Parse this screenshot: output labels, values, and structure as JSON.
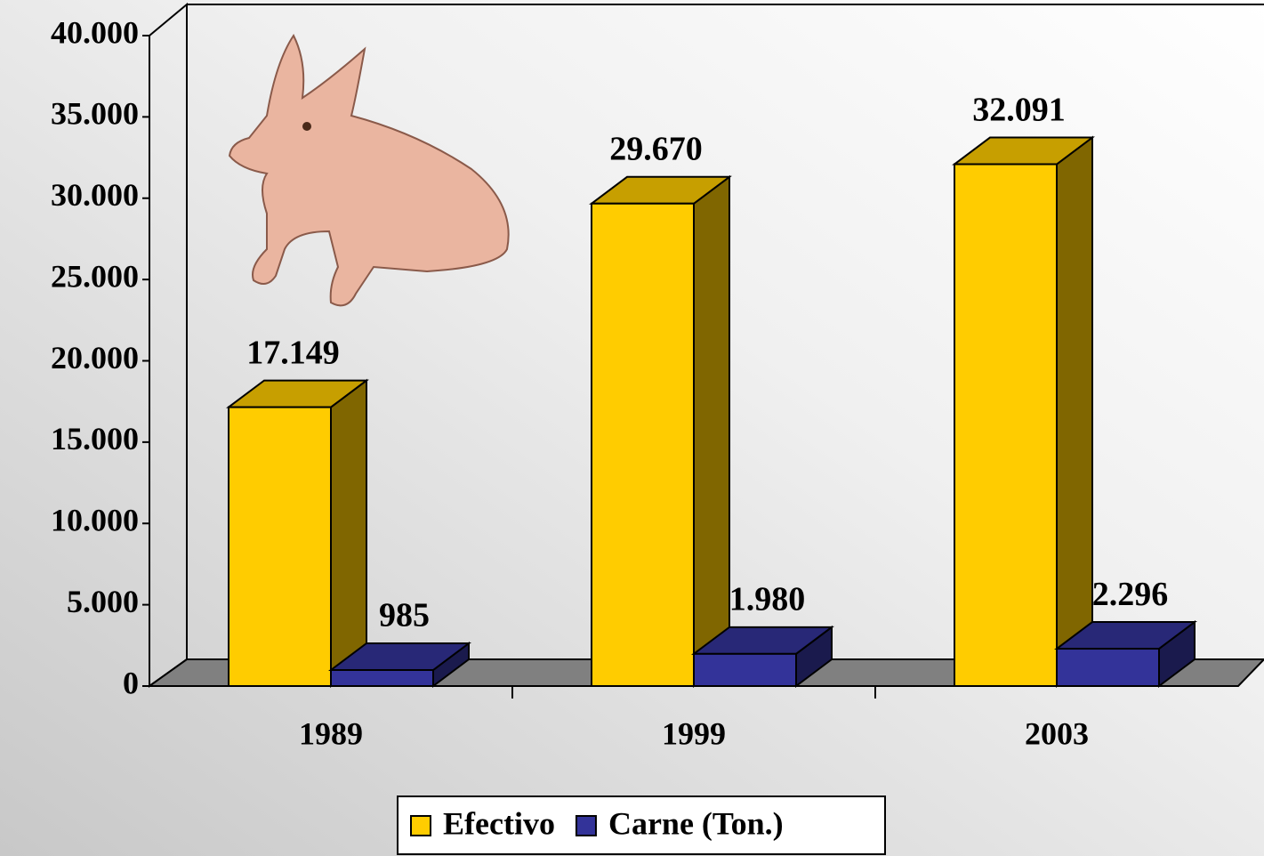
{
  "chart_data": {
    "type": "bar3d",
    "categories": [
      "1989",
      "1999",
      "2003"
    ],
    "series": [
      {
        "name": "Efectivo",
        "color": "#ffcc00",
        "values": [
          17149,
          29670,
          32091
        ],
        "value_labels": [
          "17.149",
          "29.670",
          "32.091"
        ]
      },
      {
        "name": "Carne (Ton.)",
        "color": "#333399",
        "values": [
          985,
          1980,
          2296
        ],
        "value_labels": [
          "985",
          "1.980",
          "2.296"
        ]
      }
    ],
    "ylim": [
      0,
      40000
    ],
    "yticks": [
      {
        "value": 0,
        "label": "0"
      },
      {
        "value": 5000,
        "label": "5.000"
      },
      {
        "value": 10000,
        "label": "10.000"
      },
      {
        "value": 15000,
        "label": "15.000"
      },
      {
        "value": 20000,
        "label": "20.000"
      },
      {
        "value": 25000,
        "label": "25.000"
      },
      {
        "value": 30000,
        "label": "30.000"
      },
      {
        "value": 35000,
        "label": "35.000"
      },
      {
        "value": 40000,
        "label": "40.000"
      }
    ],
    "legend": "bottom"
  }
}
